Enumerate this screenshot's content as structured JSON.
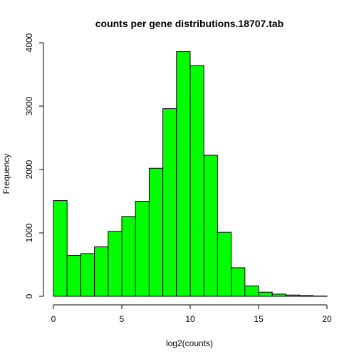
{
  "chart_data": {
    "type": "bar",
    "title": "counts per gene distributions.18707.tab",
    "xlabel": "log2(counts)",
    "ylabel": "Frequency",
    "bin_edges": [
      0,
      1,
      2,
      3,
      4,
      5,
      6,
      7,
      8,
      9,
      10,
      11,
      12,
      13,
      14,
      15,
      16,
      17,
      18,
      19,
      20
    ],
    "values": [
      1510,
      645,
      675,
      780,
      1025,
      1260,
      1500,
      2020,
      2960,
      3860,
      3640,
      2225,
      1010,
      450,
      165,
      65,
      35,
      20,
      12,
      5
    ],
    "xlim": [
      0,
      20
    ],
    "ylim": [
      0,
      4000
    ],
    "xticks": [
      "0",
      "5",
      "10",
      "15",
      "20"
    ],
    "xtick_values": [
      0,
      5,
      10,
      15,
      20
    ],
    "yticks": [
      "0",
      "1000",
      "2000",
      "3000",
      "4000"
    ],
    "ytick_values": [
      0,
      1000,
      2000,
      3000,
      4000
    ],
    "bar_color": "#00ff00",
    "grid": false,
    "legend": "none"
  }
}
